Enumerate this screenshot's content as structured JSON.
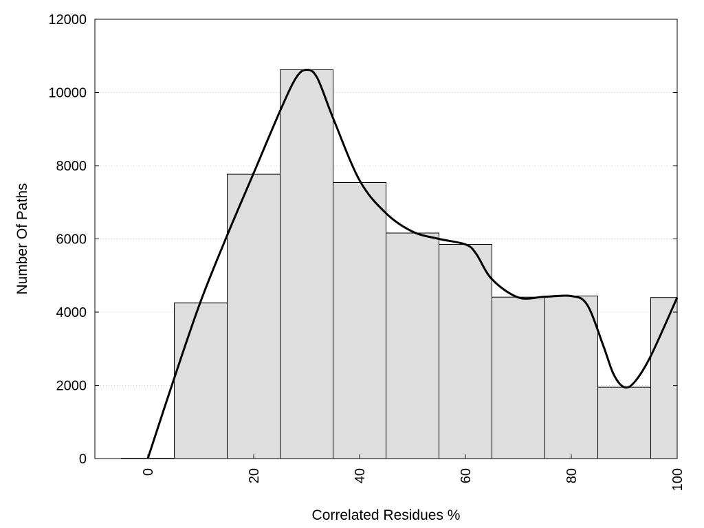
{
  "chart_data": {
    "type": "bar",
    "title": "",
    "xlabel": "Correlated Residues %",
    "ylabel": "Number Of Paths",
    "xlim": [
      -10,
      100
    ],
    "ylim": [
      0,
      12000
    ],
    "grid": "horizontal-dotted",
    "legend": "none",
    "x_ticks": [
      "0",
      "20",
      "40",
      "60",
      "80",
      "100"
    ],
    "y_ticks": [
      "0",
      "2000",
      "4000",
      "6000",
      "8000",
      "10000",
      "12000"
    ],
    "bin_width": 10,
    "categories": [
      0,
      10,
      20,
      30,
      40,
      50,
      60,
      70,
      80,
      90,
      100
    ],
    "values": [
      10,
      4250,
      7770,
      10620,
      7540,
      6160,
      5850,
      4410,
      4440,
      1950,
      4400
    ],
    "curve": {
      "x": [
        0,
        5,
        10,
        15,
        20,
        25,
        28,
        30,
        32,
        35,
        40,
        45,
        50,
        55,
        60,
        62,
        65,
        70,
        75,
        80,
        83,
        86,
        88,
        90,
        92,
        95,
        100
      ],
      "y": [
        0,
        2200,
        4300,
        6100,
        7800,
        9500,
        10400,
        10620,
        10400,
        9300,
        7600,
        6700,
        6200,
        6000,
        5850,
        5600,
        4900,
        4400,
        4420,
        4440,
        4200,
        3100,
        2300,
        1950,
        2100,
        2800,
        4400
      ]
    },
    "colors": {
      "bar_fill": "#dedede",
      "bar_stroke": "#000000",
      "curve": "#000000",
      "grid": "#c8c8c8"
    }
  }
}
